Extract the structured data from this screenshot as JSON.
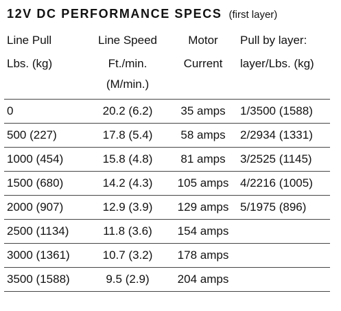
{
  "title": {
    "main": "12V DC PERFORMANCE SPECS",
    "sub": "(first layer)"
  },
  "table": {
    "header_row1": [
      "Line Pull",
      "Line Speed",
      "Motor",
      "Pull by layer:"
    ],
    "header_row2": {
      "line_pull": "Lbs. (kg)",
      "line_speed_line1": "Ft./min.",
      "line_speed_line2": "(M/min.)",
      "motor": "Current",
      "pull_by_layer": "layer/Lbs. (kg)"
    },
    "rows": [
      {
        "line_pull": "0",
        "line_speed": "20.2 (6.2)",
        "motor_current": "35 amps",
        "pull_by_layer": "1/3500 (1588)"
      },
      {
        "line_pull": "500 (227)",
        "line_speed": "17.8 (5.4)",
        "motor_current": "58 amps",
        "pull_by_layer": "2/2934 (1331)"
      },
      {
        "line_pull": "1000 (454)",
        "line_speed": "15.8 (4.8)",
        "motor_current": "81 amps",
        "pull_by_layer": "3/2525 (1145)"
      },
      {
        "line_pull": "1500 (680)",
        "line_speed": "14.2 (4.3)",
        "motor_current": "105 amps",
        "pull_by_layer": "4/2216 (1005)"
      },
      {
        "line_pull": "2000 (907)",
        "line_speed": "12.9 (3.9)",
        "motor_current": "129 amps",
        "pull_by_layer": "5/1975 (896)"
      },
      {
        "line_pull": "2500 (1134)",
        "line_speed": "11.8 (3.6)",
        "motor_current": "154 amps",
        "pull_by_layer": ""
      },
      {
        "line_pull": "3000 (1361)",
        "line_speed": "10.7 (3.2)",
        "motor_current": "178 amps",
        "pull_by_layer": ""
      },
      {
        "line_pull": "3500 (1588)",
        "line_speed": "9.5 (2.9)",
        "motor_current": "204 amps",
        "pull_by_layer": ""
      }
    ]
  }
}
